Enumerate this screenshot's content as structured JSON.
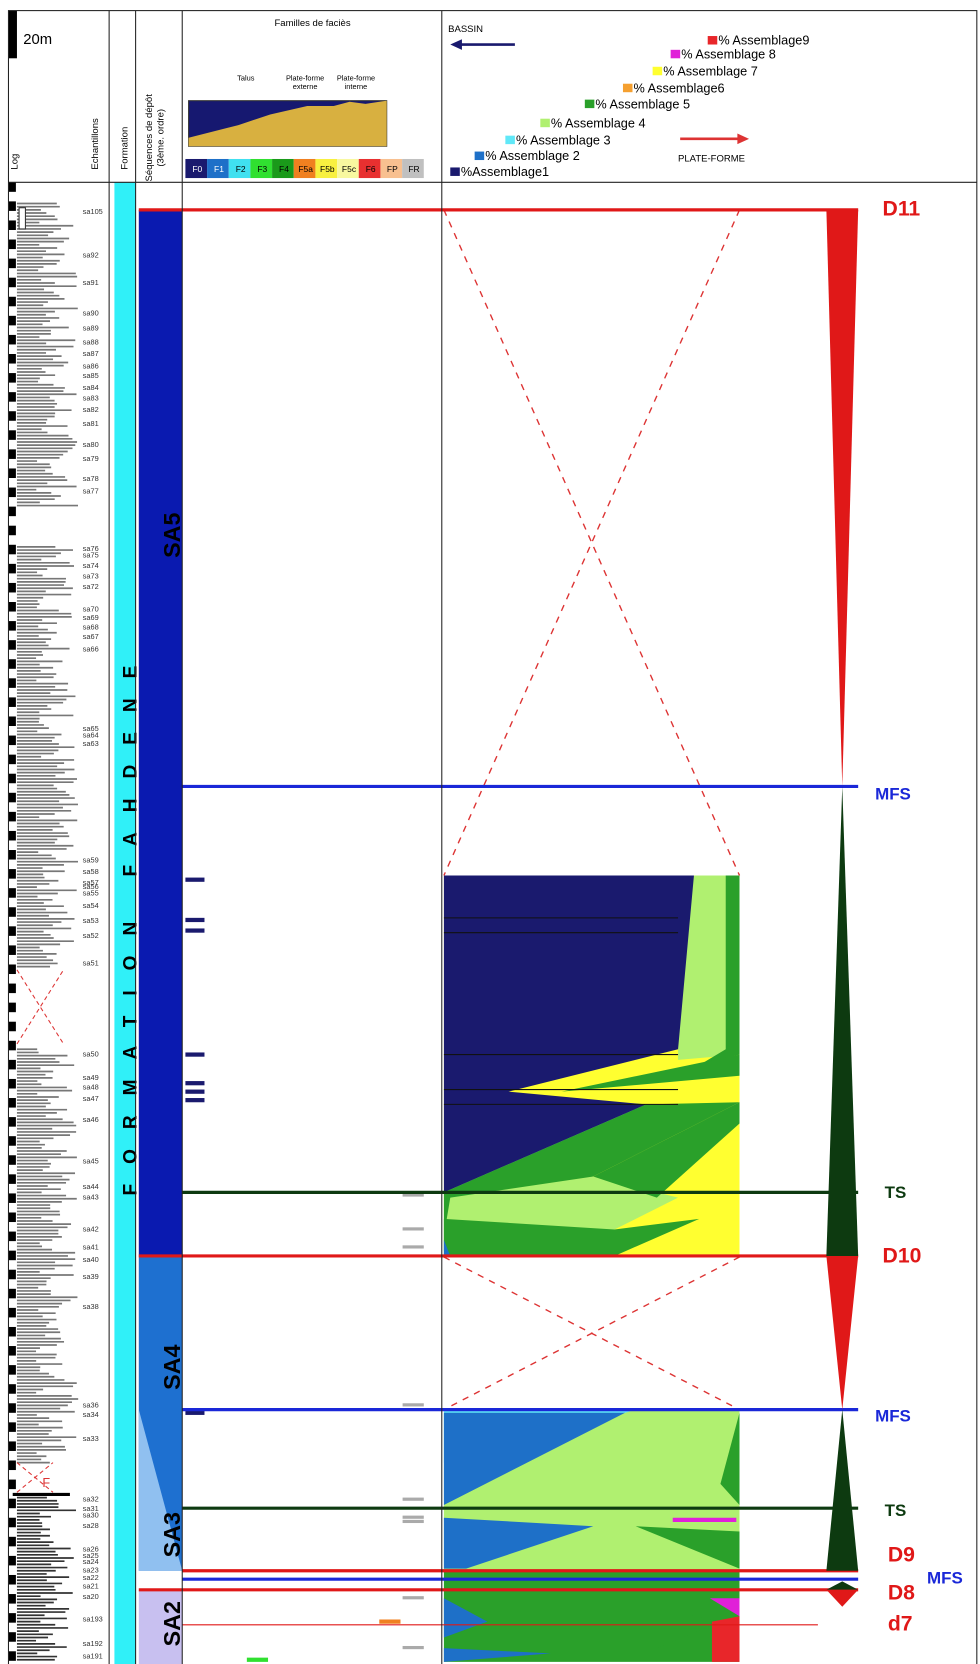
{
  "header": {
    "scale": "20m",
    "columns": {
      "log": "Log",
      "samples": "Echantillons",
      "formation": "Formation",
      "sequences": [
        "Séquences de dépôt",
        "(3ème. ordre)"
      ]
    },
    "facies": {
      "title": "Familles de faciès",
      "zones": [
        [
          "Talus"
        ],
        [
          "Plate-forme",
          "externe"
        ],
        [
          "Plate-forme",
          "interne"
        ]
      ],
      "codes": [
        {
          "label": "F0",
          "color": "#1a1a6e"
        },
        {
          "label": "F1",
          "color": "#1e70c8"
        },
        {
          "label": "F2",
          "color": "#40e0f0"
        },
        {
          "label": "F3",
          "color": "#30e030"
        },
        {
          "label": "F4",
          "color": "#1a9a1a"
        },
        {
          "label": "F5a",
          "color": "#f08020"
        },
        {
          "label": "F5b",
          "color": "#f8f040"
        },
        {
          "label": "F5c",
          "color": "#f8f8a0"
        },
        {
          "label": "F6",
          "color": "#e83030"
        },
        {
          "label": "FP",
          "color": "#f8c090"
        },
        {
          "label": "FR",
          "color": "#c0c0c0"
        }
      ]
    },
    "assemblages": {
      "basin": "BASSIN",
      "platform": "PLATE-FORME",
      "legend": [
        {
          "label": "%Assemblage1",
          "color": "#1a1a6e"
        },
        {
          "label": "% Assemblage 2",
          "color": "#1e70c8"
        },
        {
          "label": "% Assemblage 3",
          "color": "#60e8f8"
        },
        {
          "label": "% Assemblage 4",
          "color": "#b0f070"
        },
        {
          "label": "% Assemblage 5",
          "color": "#2aa02a"
        },
        {
          "label": "% Assemblage6",
          "color": "#f5a030"
        },
        {
          "label": "% Assemblage 7",
          "color": "#ffff30"
        },
        {
          "label": "% Assemblage 8",
          "color": "#e020d8"
        },
        {
          "label": "% Assemblage9",
          "color": "#e8262a"
        }
      ]
    }
  },
  "formation": "FORMATION FAHDENE",
  "sequences": [
    "SA5",
    "SA4",
    "SA3",
    "SA2"
  ],
  "surfaces": [
    "D11",
    "MFS",
    "TS",
    "D10",
    "MFS",
    "TS",
    "D9",
    "MFS",
    "D8",
    "d7"
  ],
  "fault": "F",
  "samples": [
    "sa105",
    "sa92",
    "sa91",
    "sa90",
    "sa89",
    "sa88",
    "sa87",
    "sa86",
    "sa85",
    "sa84",
    "sa83",
    "sa82",
    "sa81",
    "sa80",
    "sa79",
    "sa78",
    "sa77",
    "sa76",
    "sa75",
    "sa74",
    "sa73",
    "sa72",
    "sa70",
    "sa69",
    "sa68",
    "sa67",
    "sa66",
    "sa65",
    "sa64",
    "sa63",
    "sa59",
    "sa58",
    "sa57",
    "sa56",
    "sa55",
    "sa54",
    "sa53",
    "sa52",
    "sa51",
    "sa50",
    "sa49",
    "sa48",
    "sa47",
    "sa46",
    "sa45",
    "sa44",
    "sa43",
    "sa42",
    "sa41",
    "sa40",
    "sa39",
    "sa38",
    "sa36",
    "sa34",
    "sa33",
    "sa32",
    "sa31",
    "sa30",
    "sa28",
    "sa26",
    "sa25",
    "sa24",
    "sa23",
    "sa22",
    "sa21",
    "sa20",
    "sa193",
    "sa192",
    "sa191"
  ]
}
